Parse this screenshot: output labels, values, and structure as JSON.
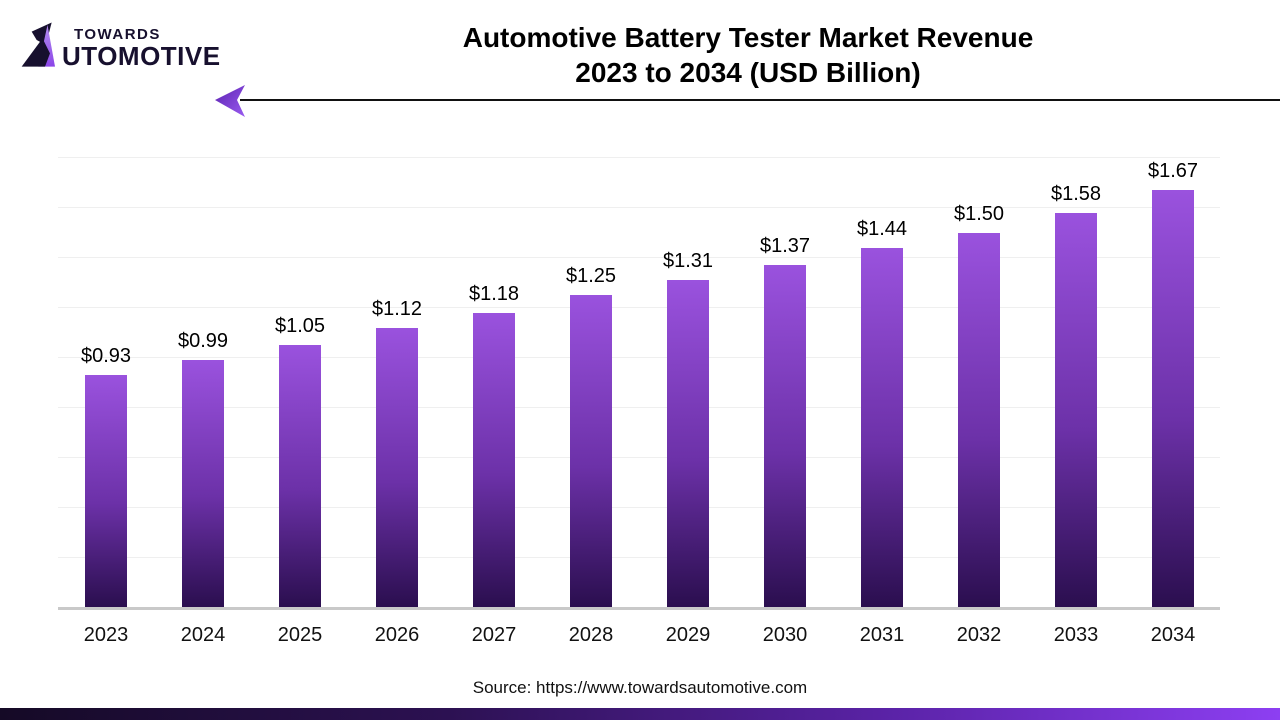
{
  "logo": {
    "mark_name": "towards-automotive-a-mark",
    "top_text": "TOWARDS",
    "bottom_text": "UTOMOTIVE"
  },
  "header": {
    "title_line1": "Automotive Battery Tester Market Revenue",
    "title_line2": "2023 to 2034 (USD Billion)"
  },
  "chart_data": {
    "type": "bar",
    "title": "Automotive Battery Tester Market Revenue 2023 to 2034 (USD Billion)",
    "categories": [
      "2023",
      "2024",
      "2025",
      "2026",
      "2027",
      "2028",
      "2029",
      "2030",
      "2031",
      "2032",
      "2033",
      "2034"
    ],
    "values": [
      0.93,
      0.99,
      1.05,
      1.12,
      1.18,
      1.25,
      1.31,
      1.37,
      1.44,
      1.5,
      1.58,
      1.67
    ],
    "value_labels": [
      "$0.93",
      "$0.99",
      "$1.05",
      "$1.12",
      "$1.18",
      "$1.25",
      "$1.31",
      "$1.37",
      "$1.44",
      "$1.50",
      "$1.58",
      "$1.67"
    ],
    "xlabel": "",
    "ylabel": "",
    "unit": "USD Billion",
    "ylim": [
      0,
      1.87
    ],
    "gridline_step": 0.2,
    "grid": "horizontal-faint",
    "legend": "none",
    "bar_gradient_top": "#9a52de",
    "bar_gradient_bottom": "#2a0e4e"
  },
  "footer": {
    "source": "Source: https://www.towardsautomotive.com"
  },
  "colors": {
    "accent_purple": "#8d3ff2",
    "dark_purple": "#2a0e4e",
    "logo_ink": "#17102e",
    "axis_gray": "#c9c9c9",
    "grid_gray": "#efefef",
    "footer_gradient_left": "#150a26",
    "footer_gradient_right": "#8d3ff2"
  }
}
